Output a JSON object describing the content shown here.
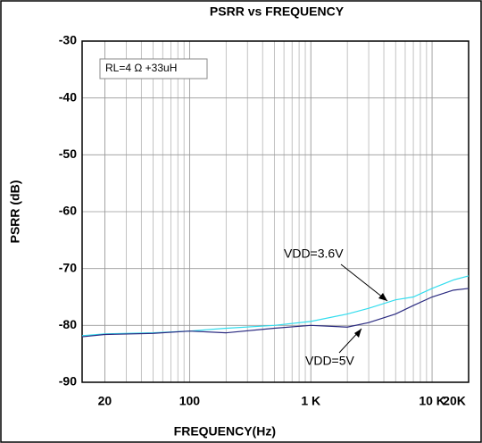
{
  "chart_data": {
    "type": "line",
    "title": "PSRR vs FREQUENCY",
    "x_label": "FREQUENCY(Hz)",
    "y_label": "PSRR (dB)",
    "annotations": [
      "RL=4 Ω +33uH"
    ],
    "log_x": true,
    "grid": true,
    "xlim": [
      13,
      20000
    ],
    "ylim": [
      -90,
      -30
    ],
    "xticks": [
      20,
      100,
      {
        "value": 1000,
        "label": "1 K"
      },
      {
        "value": 10000,
        "label": "10 K"
      },
      {
        "value": 20000,
        "label": "20K"
      }
    ],
    "yticks": [
      -90,
      -80,
      -70,
      -60,
      -50,
      -40,
      -30
    ],
    "x": [
      13,
      20,
      50,
      100,
      200,
      500,
      1000,
      2000,
      3000,
      5000,
      7000,
      10000,
      15000,
      20000
    ],
    "series": [
      {
        "name": "VDD=3.6V",
        "color": "#33ddee",
        "values": [
          -81.8,
          -81.5,
          -81.3,
          -81,
          -80.5,
          -80,
          -79.3,
          -78,
          -77,
          -75.5,
          -75,
          -73.5,
          -72,
          -71.3
        ]
      },
      {
        "name": "VDD=5V",
        "color": "#2a2a80",
        "values": [
          -82,
          -81.6,
          -81.4,
          -81,
          -81.3,
          -80.5,
          -80,
          -80.3,
          -79.5,
          -78,
          -76.5,
          -75,
          -73.8,
          -73.5
        ]
      }
    ]
  }
}
